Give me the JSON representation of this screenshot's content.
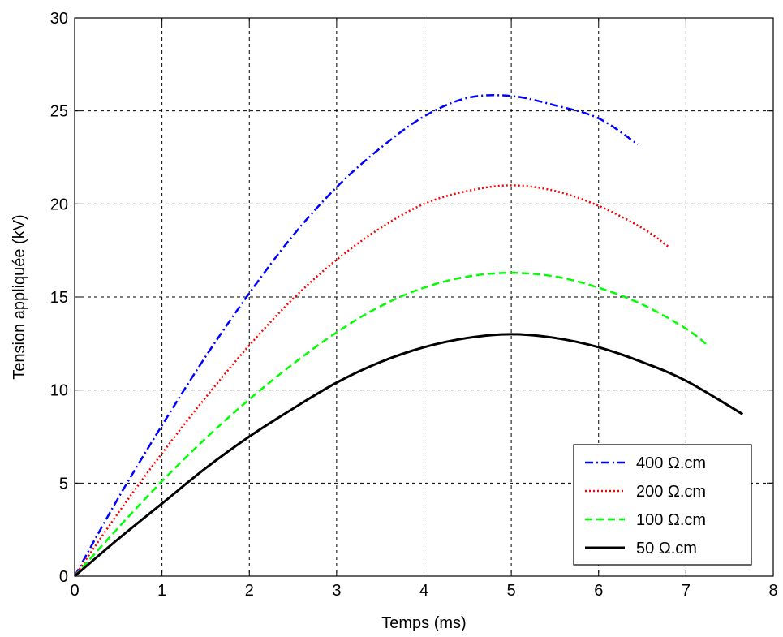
{
  "chart_data": {
    "type": "line",
    "xlabel": "Temps  (ms)",
    "ylabel": "Tension appliquée (kV)",
    "xlim": [
      0,
      8
    ],
    "ylim": [
      0,
      30
    ],
    "xticks": [
      0,
      1,
      2,
      3,
      4,
      5,
      6,
      7,
      8
    ],
    "yticks": [
      0,
      5,
      10,
      15,
      20,
      25,
      30
    ],
    "xtick_labels": [
      "0",
      "1",
      "2",
      "3",
      "4",
      "5",
      "6",
      "7",
      "8"
    ],
    "ytick_labels": [
      "0",
      "5",
      "10",
      "15",
      "20",
      "25",
      "30"
    ],
    "grid": true,
    "legend_position": "bottom-right",
    "series": [
      {
        "name": "400 Ω.cm",
        "color": "#0000ff",
        "style": "dashdot",
        "x": [
          0,
          0.5,
          1.0,
          1.5,
          2.0,
          2.5,
          3.0,
          3.5,
          4.0,
          4.5,
          5.0,
          5.5,
          6.0,
          6.45
        ],
        "y": [
          0,
          4.2,
          8.1,
          11.8,
          15.2,
          18.3,
          20.9,
          23.0,
          24.7,
          25.7,
          25.8,
          25.3,
          24.6,
          23.2
        ]
      },
      {
        "name": "200 Ω.cm",
        "color": "#ff0000",
        "style": "dotted",
        "x": [
          0,
          0.5,
          1.0,
          1.5,
          2.0,
          2.5,
          3.0,
          3.5,
          4.0,
          4.5,
          5.0,
          5.5,
          6.0,
          6.5,
          6.8
        ],
        "y": [
          0,
          3.4,
          6.6,
          9.6,
          12.4,
          14.9,
          17.0,
          18.7,
          20.0,
          20.7,
          21.0,
          20.7,
          19.9,
          18.7,
          17.7
        ]
      },
      {
        "name": "100 Ω.cm",
        "color": "#00ff00",
        "style": "dashed",
        "x": [
          0,
          0.5,
          1.0,
          1.5,
          2.0,
          2.5,
          3.0,
          3.5,
          4.0,
          4.5,
          5.0,
          5.5,
          6.0,
          6.5,
          7.0,
          7.25
        ],
        "y": [
          0,
          2.6,
          5.1,
          7.4,
          9.5,
          11.4,
          13.1,
          14.5,
          15.5,
          16.1,
          16.3,
          16.1,
          15.5,
          14.6,
          13.3,
          12.4
        ]
      },
      {
        "name": "50 Ω.cm",
        "color": "#000000",
        "style": "solid",
        "x": [
          0,
          0.5,
          1.0,
          1.5,
          2.0,
          2.5,
          3.0,
          3.5,
          4.0,
          4.5,
          5.0,
          5.5,
          6.0,
          6.5,
          7.0,
          7.65
        ],
        "y": [
          0,
          2.0,
          3.9,
          5.8,
          7.5,
          9.0,
          10.4,
          11.5,
          12.3,
          12.8,
          13.0,
          12.8,
          12.3,
          11.5,
          10.5,
          8.7
        ]
      }
    ]
  }
}
